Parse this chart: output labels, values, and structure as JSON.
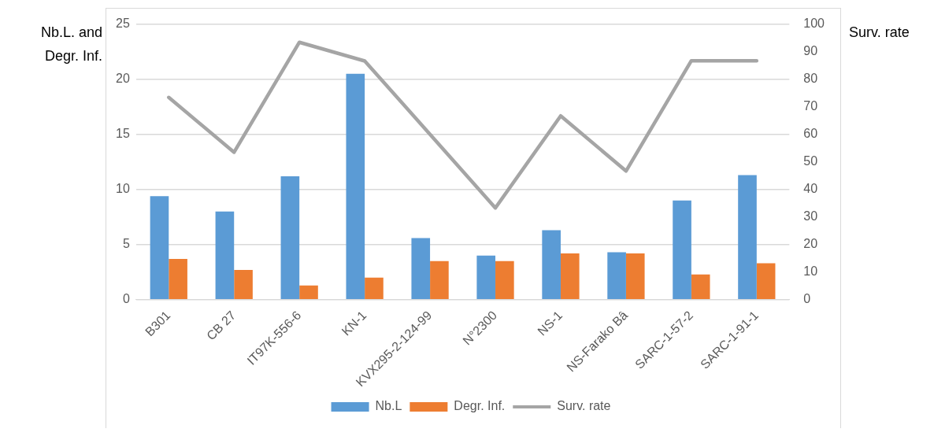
{
  "chart_data": {
    "type": "bar",
    "ylabel": "Nb.L. and Degr. Inf.",
    "y2label": "Surv. rate",
    "categories": [
      "B301",
      "CB 27",
      "IT97K-556-6",
      "KN-1",
      "KVX295-2-124-99",
      "N°2300",
      "NS-1",
      "NS-Farako Bâ",
      "SARC-1-57-2",
      "SARC-1-91-1"
    ],
    "series": [
      {
        "name": "Nb.L",
        "color": "#5b9bd5",
        "values": [
          9.4,
          8.0,
          11.2,
          20.5,
          5.6,
          4.0,
          6.3,
          4.3,
          9.0,
          11.3
        ]
      },
      {
        "name": "Degr. Inf.",
        "color": "#ed7d31",
        "values": [
          3.7,
          2.7,
          1.3,
          2.0,
          3.5,
          3.5,
          4.2,
          4.2,
          2.3,
          3.3
        ]
      },
      {
        "name": "Surv. rate",
        "type": "line",
        "axis": "y2",
        "color": "#a5a5a5",
        "values": [
          73.4,
          53.5,
          93.4,
          86.6,
          60,
          33.3,
          66.7,
          46.7,
          86.7,
          86.7
        ]
      }
    ],
    "ylim": [
      0,
      25
    ],
    "yticks": [
      0,
      5,
      10,
      15,
      20,
      25
    ],
    "y2lim": [
      0,
      100
    ],
    "y2ticks": [
      0,
      10,
      20,
      30,
      40,
      50,
      60,
      70,
      80,
      90,
      100
    ],
    "grid": "y",
    "legend": "bottom",
    "marker": "none"
  }
}
